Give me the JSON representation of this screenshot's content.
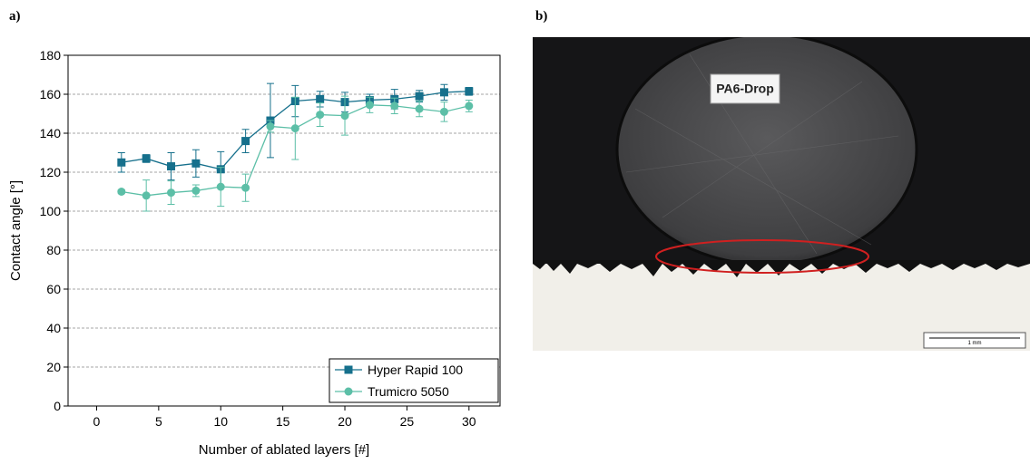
{
  "chart_data": {
    "type": "line",
    "panel_label": "a)",
    "x_label": "Number of ablated layers [#]",
    "y_label": "Contact angle [°]",
    "x": [
      2,
      4,
      6,
      8,
      10,
      12,
      14,
      16,
      18,
      20,
      22,
      24,
      26,
      28,
      30
    ],
    "series": [
      {
        "name": "Hyper Rapid 100",
        "color": "#16708c",
        "marker": "square",
        "values": [
          125,
          127,
          123,
          124.5,
          121.5,
          136,
          146.5,
          156.5,
          157.5,
          156,
          157,
          157.5,
          159,
          161,
          161.5
        ],
        "errors": [
          5,
          2,
          7,
          7,
          9,
          6,
          19,
          8,
          4,
          5,
          3,
          5,
          3,
          4,
          2
        ]
      },
      {
        "name": "Trumicro 5050",
        "color": "#5cbfa7",
        "marker": "circle",
        "values": [
          110,
          108,
          109.5,
          110.5,
          112.5,
          112,
          143.5,
          142.5,
          149.5,
          149,
          154.5,
          154,
          152.5,
          151,
          154
        ],
        "errors": [
          1,
          8,
          6,
          3,
          10,
          7,
          3,
          16,
          6,
          10,
          4,
          4,
          4,
          5,
          3
        ]
      }
    ],
    "xlim": [
      -2.3,
      32.5
    ],
    "xticks": [
      0,
      5,
      10,
      15,
      20,
      25,
      30
    ],
    "ylim": [
      0,
      180
    ],
    "yticks": [
      0,
      20,
      40,
      60,
      80,
      100,
      120,
      140,
      160,
      180
    ],
    "grid": true,
    "legend": "lower right"
  },
  "image": {
    "panel_label": "b)",
    "annotation": "PA6-Drop",
    "scale_bar": "1 mm"
  }
}
